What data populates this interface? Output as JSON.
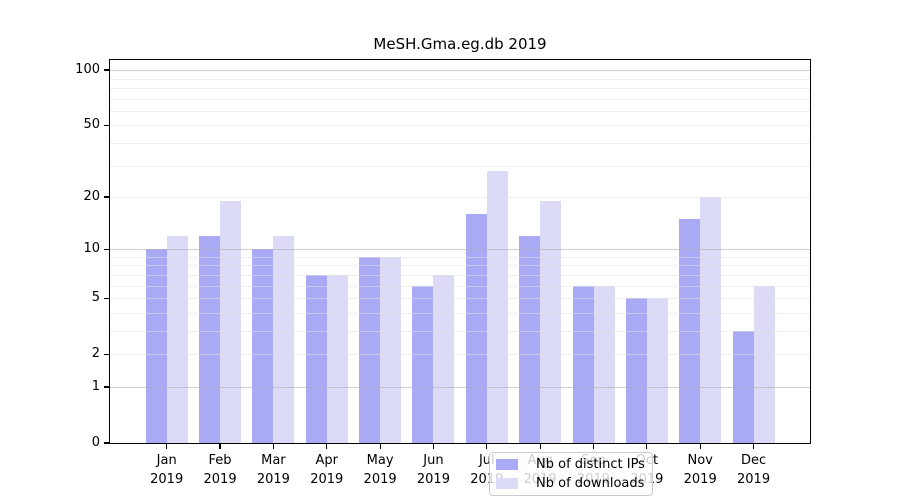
{
  "title": "MeSH.Gma.eg.db 2019",
  "colors": {
    "bar_distinct_ips": "#a9a9f5",
    "bar_downloads": "#dbdbf8",
    "grid_major": "#c8c8c8",
    "grid_minor": "#ededed",
    "axis": "#000000",
    "legend_border": "#cccccc"
  },
  "chart_data": {
    "type": "bar",
    "title": "MeSH.Gma.eg.db 2019",
    "categories": [
      "Jan",
      "Feb",
      "Mar",
      "Apr",
      "May",
      "Jun",
      "Jul",
      "Aug",
      "Sep",
      "Oct",
      "Nov",
      "Dec"
    ],
    "category_sublabel": "2019",
    "series": [
      {
        "name": "Nb of distinct IPs",
        "color": "#a9a9f5",
        "values": [
          10,
          12,
          10,
          7,
          9,
          6,
          16,
          12,
          6,
          5,
          15,
          3
        ]
      },
      {
        "name": "Nb of downloads",
        "color": "#dbdbf8",
        "values": [
          12,
          19,
          12,
          7,
          9,
          7,
          28,
          19,
          6,
          5,
          20,
          6
        ]
      }
    ],
    "xlabel": "",
    "ylabel": "",
    "y_axis": {
      "scale": "log1p",
      "tick_values": [
        0,
        1,
        2,
        5,
        10,
        20,
        50,
        100
      ],
      "major_gridlines": [
        1,
        10,
        100
      ],
      "minor_gridlines": [
        2,
        3,
        4,
        5,
        6,
        7,
        8,
        9,
        20,
        30,
        40,
        50,
        60,
        70,
        80,
        90
      ],
      "ylim": [
        0,
        112
      ]
    },
    "grid": true,
    "legend_position": "inside-bottom-center"
  }
}
